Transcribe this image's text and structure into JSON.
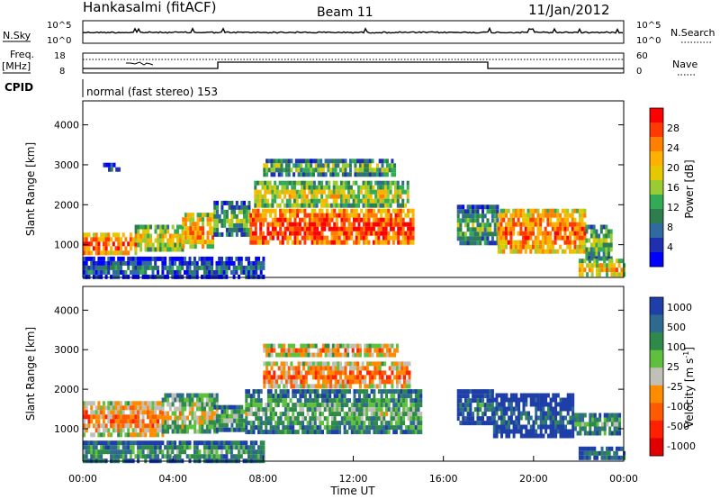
{
  "header": {
    "station": "Hankasalmi (fitACF)",
    "beam": "Beam 11",
    "date": "11/Jan/2012"
  },
  "status_panels": {
    "nsky_label": "N.Sky",
    "nsky_ticks": [
      "10^5",
      "10^0"
    ],
    "nsearch_label": "N.Search",
    "nsearch_ticks": [
      "10^5",
      "10^0"
    ],
    "freq_label": "Freq.",
    "freq_unit": "[MHz]",
    "freq_ticks": [
      "18",
      "8"
    ],
    "nave_label": "Nave",
    "nave_ticks": [
      "60",
      "0"
    ],
    "cpid_label": "CPID",
    "cpid_value": "normal (fast stereo) 153"
  },
  "chart_data": [
    {
      "type": "heatmap",
      "name": "power-panel",
      "ylabel": "Slant Range [km]",
      "ylim": [
        180,
        4600
      ],
      "yticks": [
        1000,
        2000,
        3000,
        4000
      ],
      "xlim": [
        0,
        24
      ],
      "colorbar": {
        "label": "Power [dB]",
        "ticks": [
          "28",
          "24",
          "20",
          "16",
          "12",
          "8",
          "4"
        ],
        "colors": [
          "#ff0000",
          "#ff3a00",
          "#ff7f00",
          "#ffb000",
          "#e6c800",
          "#99cc33",
          "#33aa55",
          "#2e7d4f",
          "#2f6aa0",
          "#1f2fb0",
          "#0000ff"
        ]
      },
      "regions": [
        {
          "t0": 0.0,
          "t1": 2.3,
          "r0": 800,
          "r1": 1300,
          "level": 0.88
        },
        {
          "t0": 2.3,
          "t1": 4.4,
          "r0": 900,
          "r1": 1500,
          "level": 0.65
        },
        {
          "t0": 4.4,
          "t1": 5.8,
          "r0": 900,
          "r1": 1800,
          "level": 0.78
        },
        {
          "t0": 5.8,
          "t1": 7.4,
          "r0": 1200,
          "r1": 2100,
          "level": 0.45
        },
        {
          "t0": 7.4,
          "t1": 14.7,
          "r0": 1000,
          "r1": 1900,
          "level": 0.95
        },
        {
          "t0": 7.6,
          "t1": 14.4,
          "r0": 2000,
          "r1": 2600,
          "level": 0.62
        },
        {
          "t0": 8.0,
          "t1": 13.8,
          "r0": 2800,
          "r1": 3150,
          "level": 0.5
        },
        {
          "t0": 0.9,
          "t1": 1.6,
          "r0": 2850,
          "r1": 3050,
          "level": 0.3
        },
        {
          "t0": 16.6,
          "t1": 18.4,
          "r0": 1000,
          "r1": 2000,
          "level": 0.45
        },
        {
          "t0": 18.4,
          "t1": 22.3,
          "r0": 800,
          "r1": 1900,
          "level": 0.85
        },
        {
          "t0": 22.3,
          "t1": 23.5,
          "r0": 700,
          "r1": 1500,
          "level": 0.5
        },
        {
          "t0": 22.0,
          "t1": 24.0,
          "r0": 250,
          "r1": 650,
          "level": 0.7
        },
        {
          "t0": 0.0,
          "t1": 8.0,
          "r0": 200,
          "r1": 700,
          "level": 0.3
        }
      ]
    },
    {
      "type": "heatmap",
      "name": "velocity-panel",
      "ylabel": "Slant Range [km]",
      "xlabel": "Time UT",
      "ylim": [
        180,
        4600
      ],
      "yticks": [
        1000,
        2000,
        3000,
        4000
      ],
      "xlim": [
        0,
        24
      ],
      "xticks": [
        "00:00",
        "04:00",
        "08:00",
        "12:00",
        "16:00",
        "20:00",
        "00:00"
      ],
      "colorbar": {
        "label": "Velocity [m s",
        "label_sup": "-1",
        "label_end": "]",
        "ticks": [
          "1000",
          "500",
          "100",
          "25",
          "-25",
          "-100",
          "-500",
          "-1000"
        ],
        "colors": [
          "#1f3fa8",
          "#2e6a8f",
          "#2f8a4a",
          "#5fc040",
          "#c0c0b8",
          "#ff8c00",
          "#ff5a00",
          "#ff2000",
          "#e00000"
        ]
      },
      "regions": [
        {
          "t0": 0.0,
          "t1": 3.5,
          "r0": 900,
          "r1": 1700,
          "level": 0.72
        },
        {
          "t0": 3.5,
          "t1": 6.0,
          "r0": 900,
          "r1": 1900,
          "level": 0.55
        },
        {
          "t0": 5.8,
          "t1": 7.2,
          "r0": 1000,
          "r1": 1600,
          "level": 0.4
        },
        {
          "t0": 7.2,
          "t1": 15.0,
          "r0": 900,
          "r1": 2000,
          "level": 0.4
        },
        {
          "t0": 8.0,
          "t1": 14.5,
          "r0": 2100,
          "r1": 2700,
          "level": 0.75
        },
        {
          "t0": 8.0,
          "t1": 14.0,
          "r0": 2900,
          "r1": 3150,
          "level": 0.7
        },
        {
          "t0": 16.6,
          "t1": 18.2,
          "r0": 1200,
          "r1": 2000,
          "level": 0.22
        },
        {
          "t0": 18.2,
          "t1": 21.8,
          "r0": 800,
          "r1": 1900,
          "level": 0.15
        },
        {
          "t0": 21.8,
          "t1": 23.8,
          "r0": 900,
          "r1": 1400,
          "level": 0.4
        },
        {
          "t0": 22.0,
          "t1": 24.0,
          "r0": 250,
          "r1": 550,
          "level": 0.25
        },
        {
          "t0": 0.0,
          "t1": 8.0,
          "r0": 200,
          "r1": 700,
          "level": 0.35
        }
      ]
    }
  ]
}
